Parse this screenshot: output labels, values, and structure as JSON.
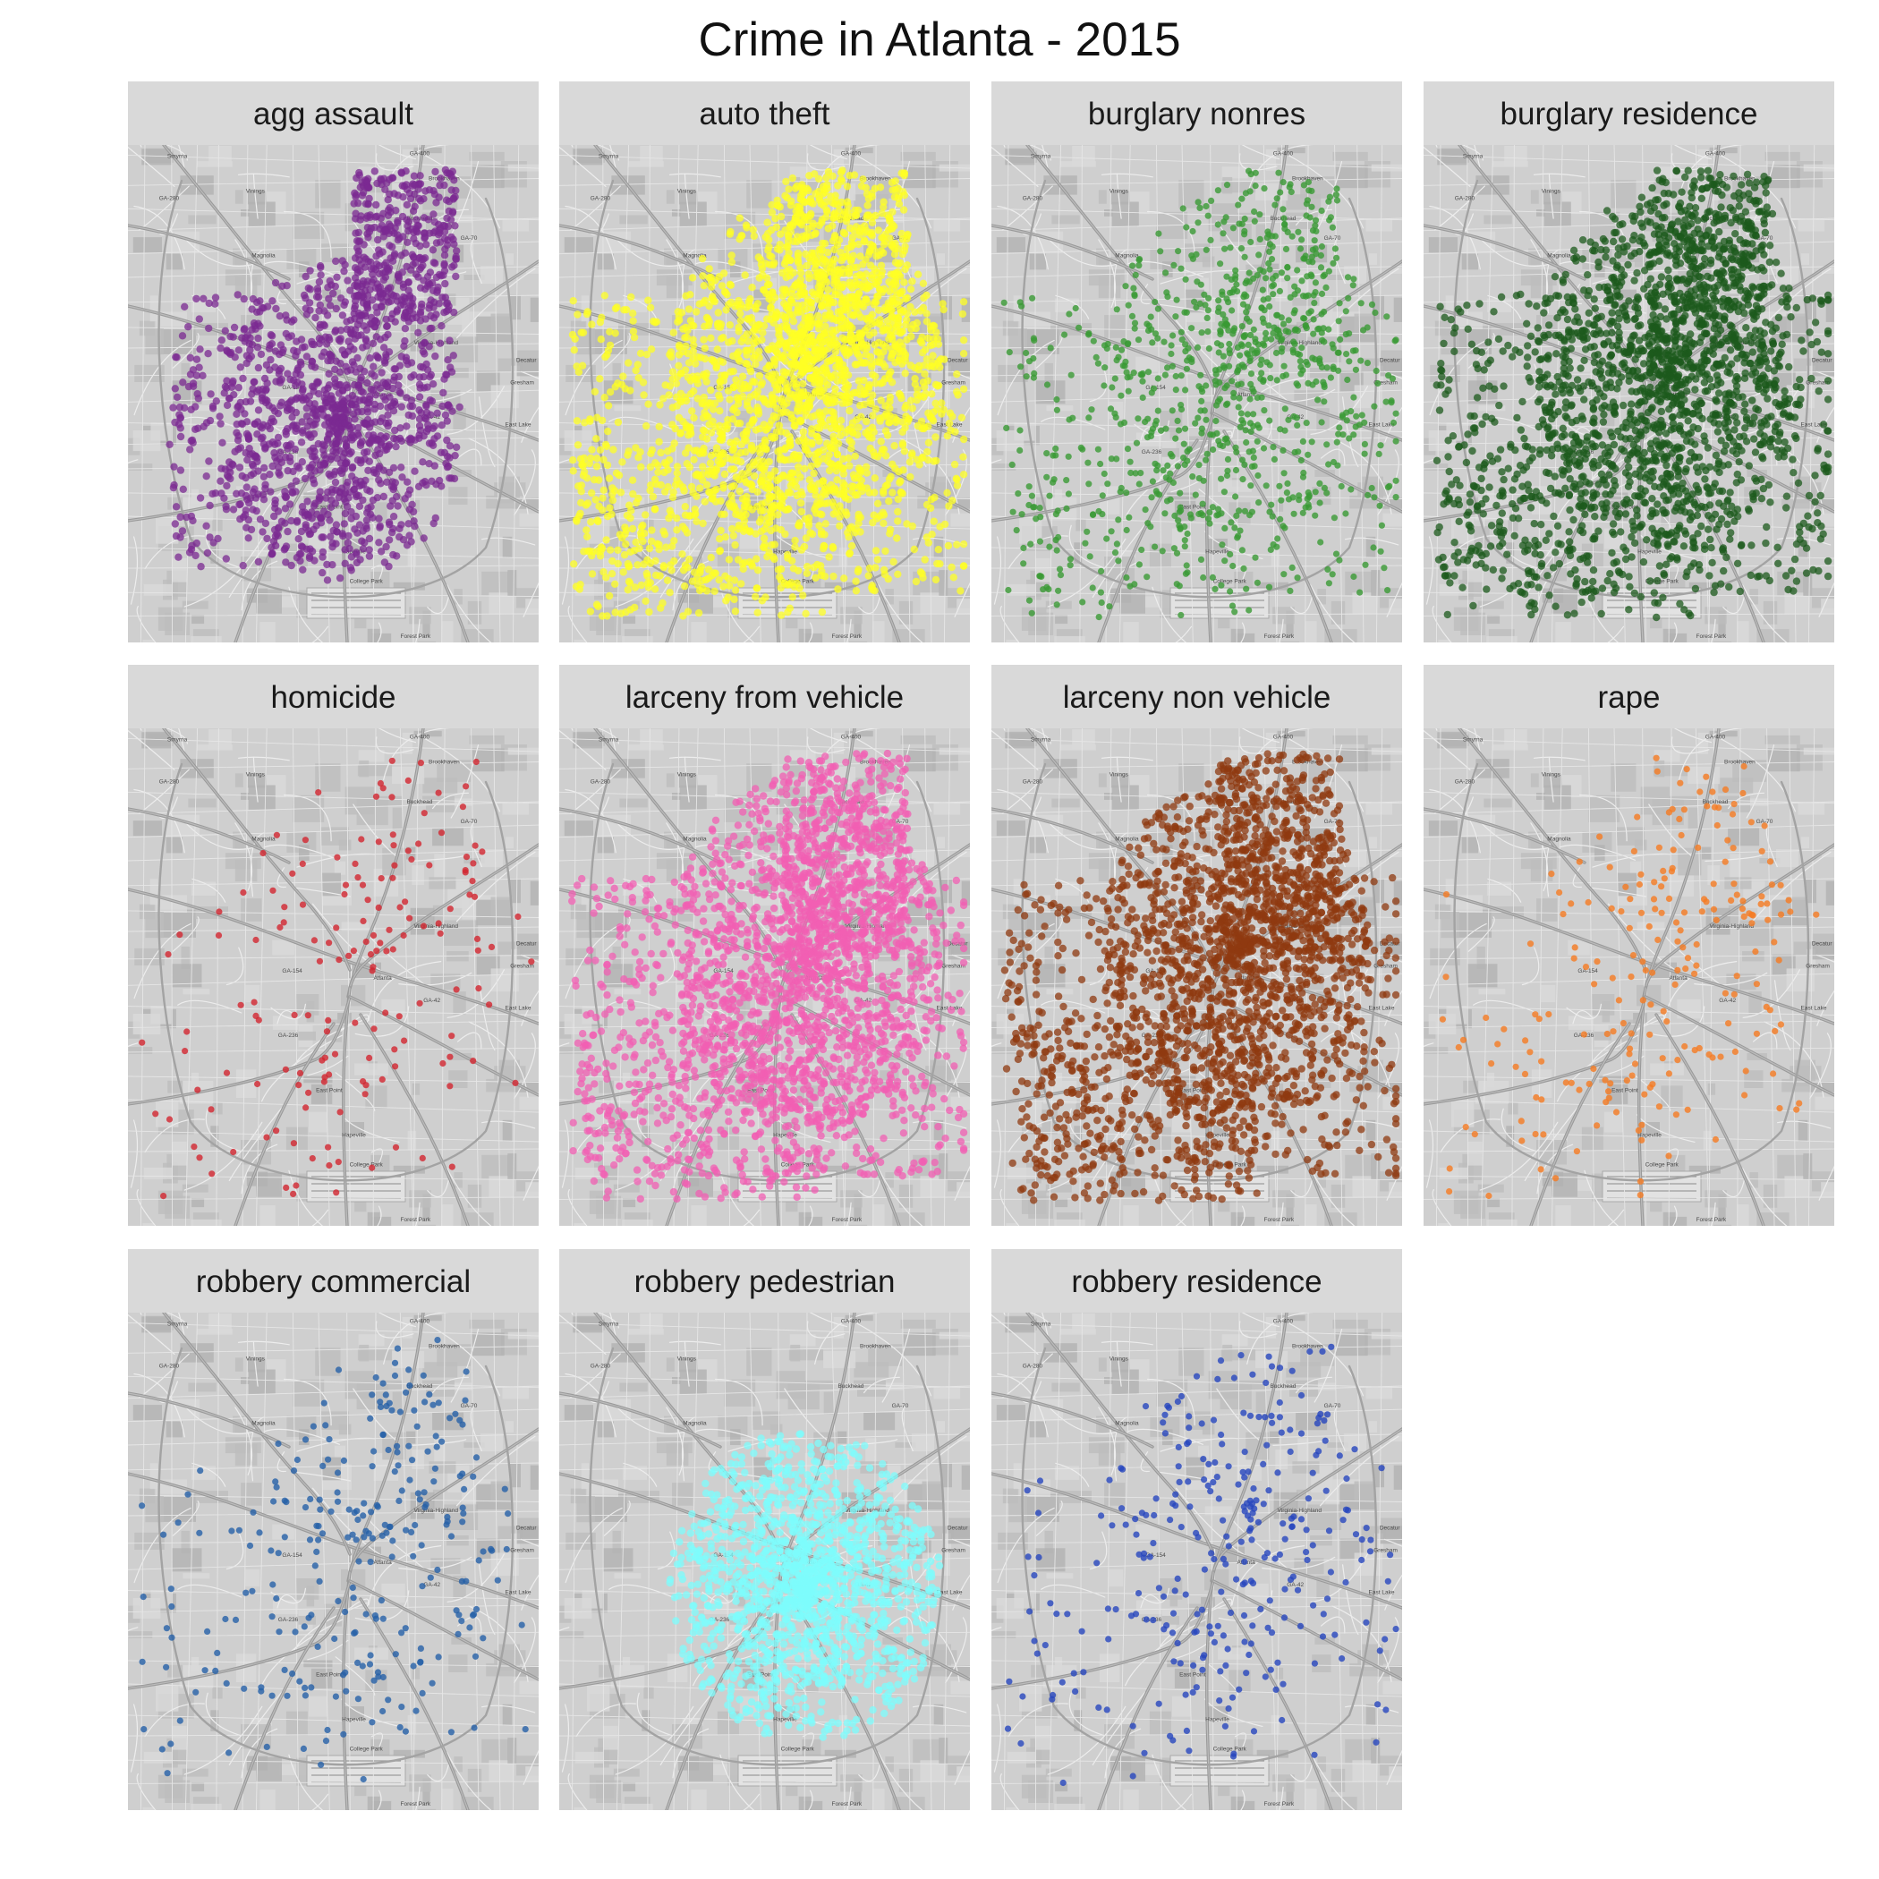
{
  "title": "Crime in Atlanta - 2015",
  "map_labels": [
    "Smyrna",
    "Vinings",
    "Buckhead",
    "Brookhaven",
    "Magnolia",
    "Virginia-Highland",
    "Decatur",
    "Atlanta",
    "Gresham",
    "East Lake",
    "East Point",
    "Hapeville",
    "College Park",
    "Forest Park",
    "GA-280",
    "GA-400",
    "GA-70",
    "GA-42",
    "GA-154",
    "GA-236"
  ],
  "panels": [
    {
      "name": "agg assault",
      "color": "#7B2A92",
      "density": 0.62,
      "pattern": "sw-heavy"
    },
    {
      "name": "auto theft",
      "color": "#FFFF24",
      "density": 0.95,
      "pattern": "dense"
    },
    {
      "name": "burglary nonres",
      "color": "#3A9A34",
      "density": 0.35,
      "pattern": "spread"
    },
    {
      "name": "burglary residence",
      "color": "#1C5A1C",
      "density": 0.85,
      "pattern": "dense"
    },
    {
      "name": "homicide",
      "color": "#D2262F",
      "density": 0.05,
      "pattern": "sparse"
    },
    {
      "name": "larceny from vehicle",
      "color": "#F25FB3",
      "density": 0.95,
      "pattern": "dense"
    },
    {
      "name": "larceny non vehicle",
      "color": "#8F3A10",
      "density": 0.9,
      "pattern": "dense"
    },
    {
      "name": "rape",
      "color": "#F57A22",
      "density": 0.07,
      "pattern": "sparse"
    },
    {
      "name": "robbery commercial",
      "color": "#2560A8",
      "density": 0.09,
      "pattern": "sparse"
    },
    {
      "name": "robbery pedestrian",
      "color": "#7EFCFC",
      "density": 0.55,
      "pattern": "central"
    },
    {
      "name": "robbery residence",
      "color": "#2746BE",
      "density": 0.1,
      "pattern": "sparse"
    }
  ]
}
